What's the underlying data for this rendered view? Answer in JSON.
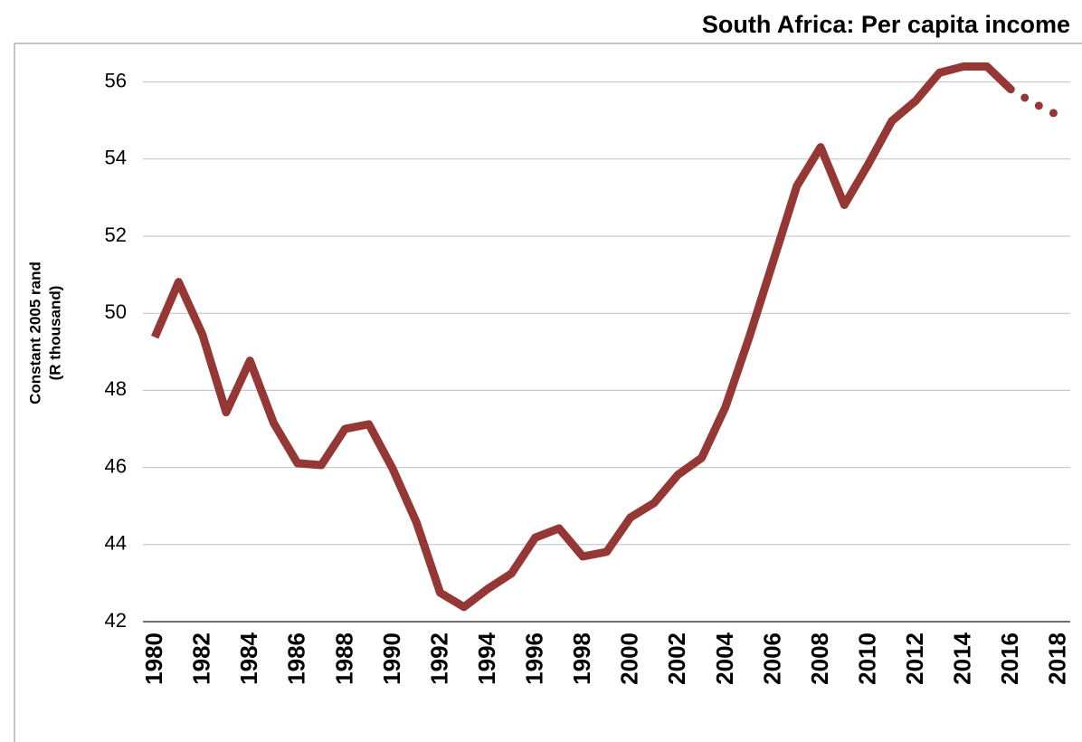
{
  "chart_data": {
    "type": "line",
    "title": "South Africa: Per capita income",
    "y_label": [
      "Constant 2005 rand",
      "(R thousand)"
    ],
    "categories": [
      "1980",
      null,
      "1982",
      null,
      "1984",
      null,
      "1986",
      null,
      "1988",
      null,
      "1990",
      null,
      "1992",
      null,
      "1994",
      null,
      "1996",
      null,
      "1998",
      null,
      "2000",
      null,
      "2002",
      null,
      "2004",
      null,
      "2006",
      null,
      "2008",
      null,
      "2010",
      null,
      "2012",
      null,
      "2014",
      null,
      "2016",
      null,
      "2018"
    ],
    "series": [
      {
        "color": "#953735",
        "dash": false,
        "values": [
          49.38,
          50.81,
          49.45,
          47.43,
          48.77,
          47.15,
          46.11,
          46.06,
          47.0,
          47.12,
          45.97,
          44.58,
          42.75,
          42.38,
          42.85,
          43.25,
          44.18,
          44.42,
          43.69,
          43.81,
          44.7,
          45.08,
          45.81,
          46.25,
          47.57,
          49.38,
          51.33,
          53.3,
          54.31,
          52.81,
          53.86,
          54.99,
          55.51,
          56.24,
          56.4,
          56.4,
          55.81,
          null,
          null
        ]
      },
      {
        "color": "#953735",
        "dash": true,
        "values": [
          null,
          null,
          null,
          null,
          null,
          null,
          null,
          null,
          null,
          null,
          null,
          null,
          null,
          null,
          null,
          null,
          null,
          null,
          null,
          null,
          null,
          null,
          null,
          null,
          null,
          null,
          null,
          null,
          null,
          null,
          null,
          null,
          null,
          null,
          null,
          null,
          55.81,
          55.44,
          55.13
        ]
      }
    ],
    "ylim": [
      42,
      57
    ],
    "yticks": [
      42,
      44,
      46,
      48,
      50,
      52,
      54,
      56
    ],
    "grid": true
  }
}
